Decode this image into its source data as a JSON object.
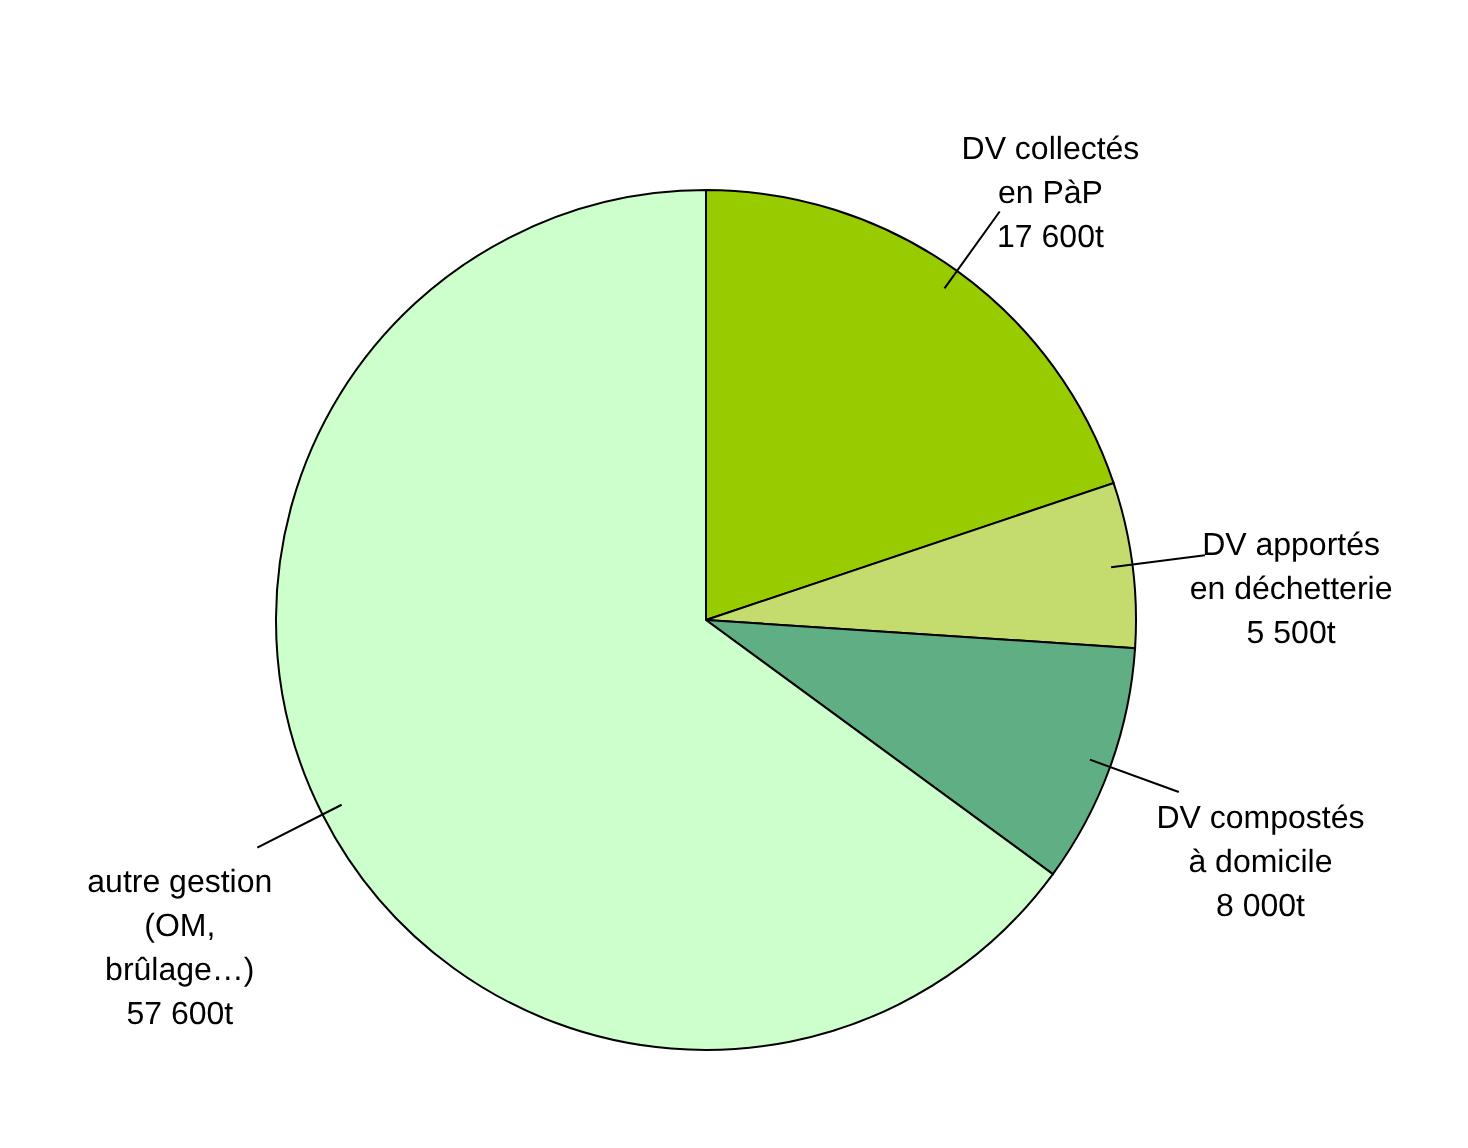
{
  "chart_data": {
    "type": "pie",
    "categories": [
      "DV collectés\nen PàP",
      "DV apportés\nen déchetterie",
      "DV compostés\nà domicile",
      "autre gestion\n(OM,\nbrûlage…)"
    ],
    "values": [
      17600,
      5500,
      8000,
      57600
    ],
    "value_labels": [
      "17 600t",
      "5 500t",
      "8 000t",
      "57 600t"
    ],
    "colors": [
      "#99cc00",
      "#c4dc6e",
      "#5fae84",
      "#ccffcc"
    ]
  }
}
